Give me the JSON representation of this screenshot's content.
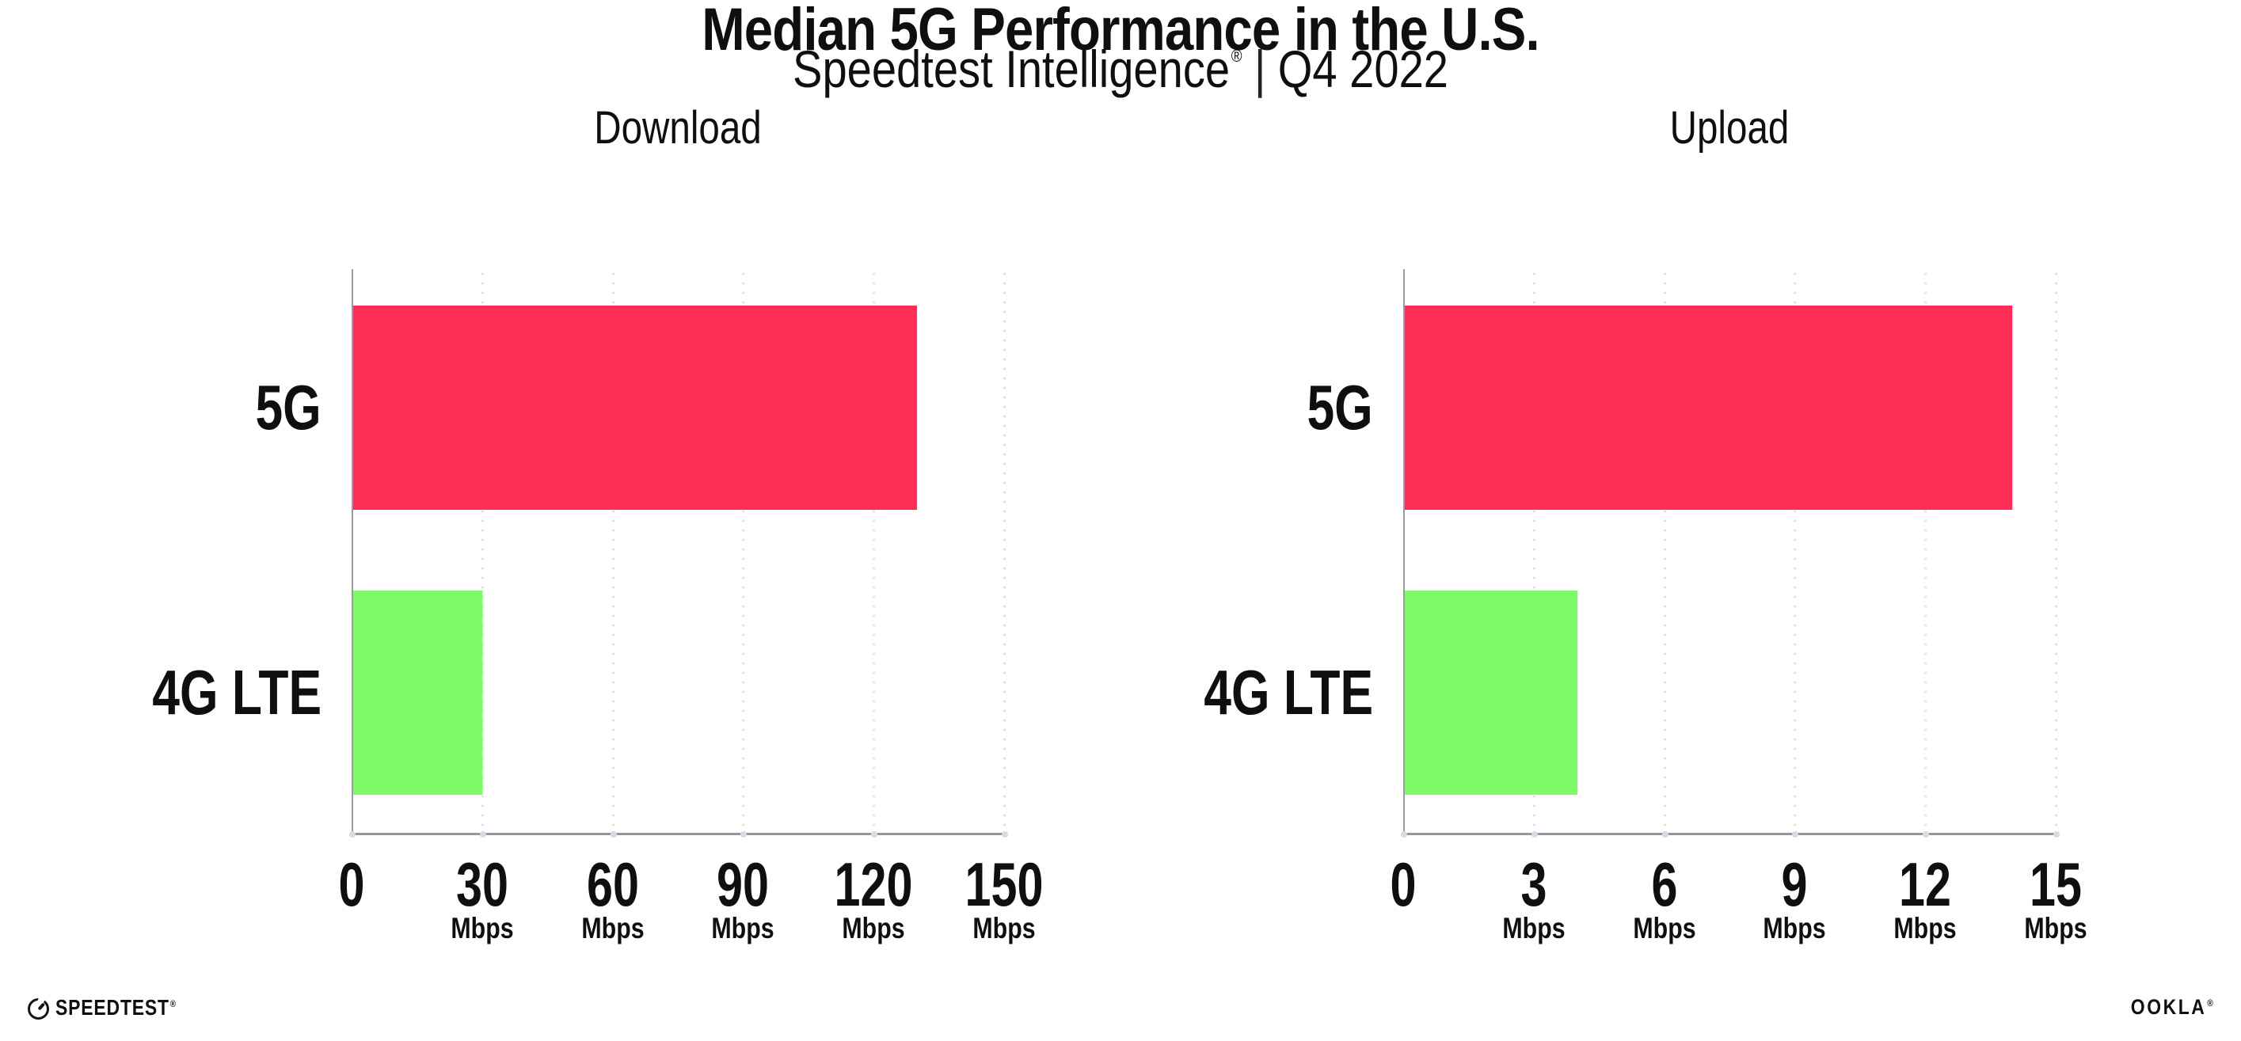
{
  "header": {
    "title": "Median 5G Performance in the U.S.",
    "subtitle": {
      "product": "Speedtest Intelligence",
      "registered": "®",
      "separator": "|",
      "period": "Q4 2022"
    }
  },
  "chart_data": [
    {
      "type": "bar",
      "orientation": "horizontal",
      "title": "Download",
      "categories": [
        "5G",
        "4G LTE"
      ],
      "values": [
        130,
        30
      ],
      "unit": "Mbps",
      "xlim": [
        0,
        150
      ],
      "x_ticks": [
        0,
        30,
        60,
        90,
        120,
        150
      ],
      "grid": "dotted-vertical",
      "legend": "none",
      "bar_colors": [
        "#FF2E57",
        "#7DFA68"
      ]
    },
    {
      "type": "bar",
      "orientation": "horizontal",
      "title": "Upload",
      "categories": [
        "5G",
        "4G LTE"
      ],
      "values": [
        14,
        4
      ],
      "unit": "Mbps",
      "xlim": [
        0,
        15
      ],
      "x_ticks": [
        0,
        3,
        6,
        9,
        12,
        15
      ],
      "grid": "dotted-vertical",
      "legend": "none",
      "bar_colors": [
        "#FF2E57",
        "#7DFA68"
      ]
    }
  ],
  "footer": {
    "speedtest_logo_text": "SPEEDTEST",
    "speedtest_trademark": "®",
    "ookla_logo_text": "OOKLA",
    "ookla_trademark": "®"
  },
  "colors": {
    "bar_5g": "#FF2E57",
    "bar_4g_lte": "#7DFA68",
    "axis_line": "#95959D",
    "grid_dots": "#E3E3EE",
    "text": "#0F0F0F"
  }
}
